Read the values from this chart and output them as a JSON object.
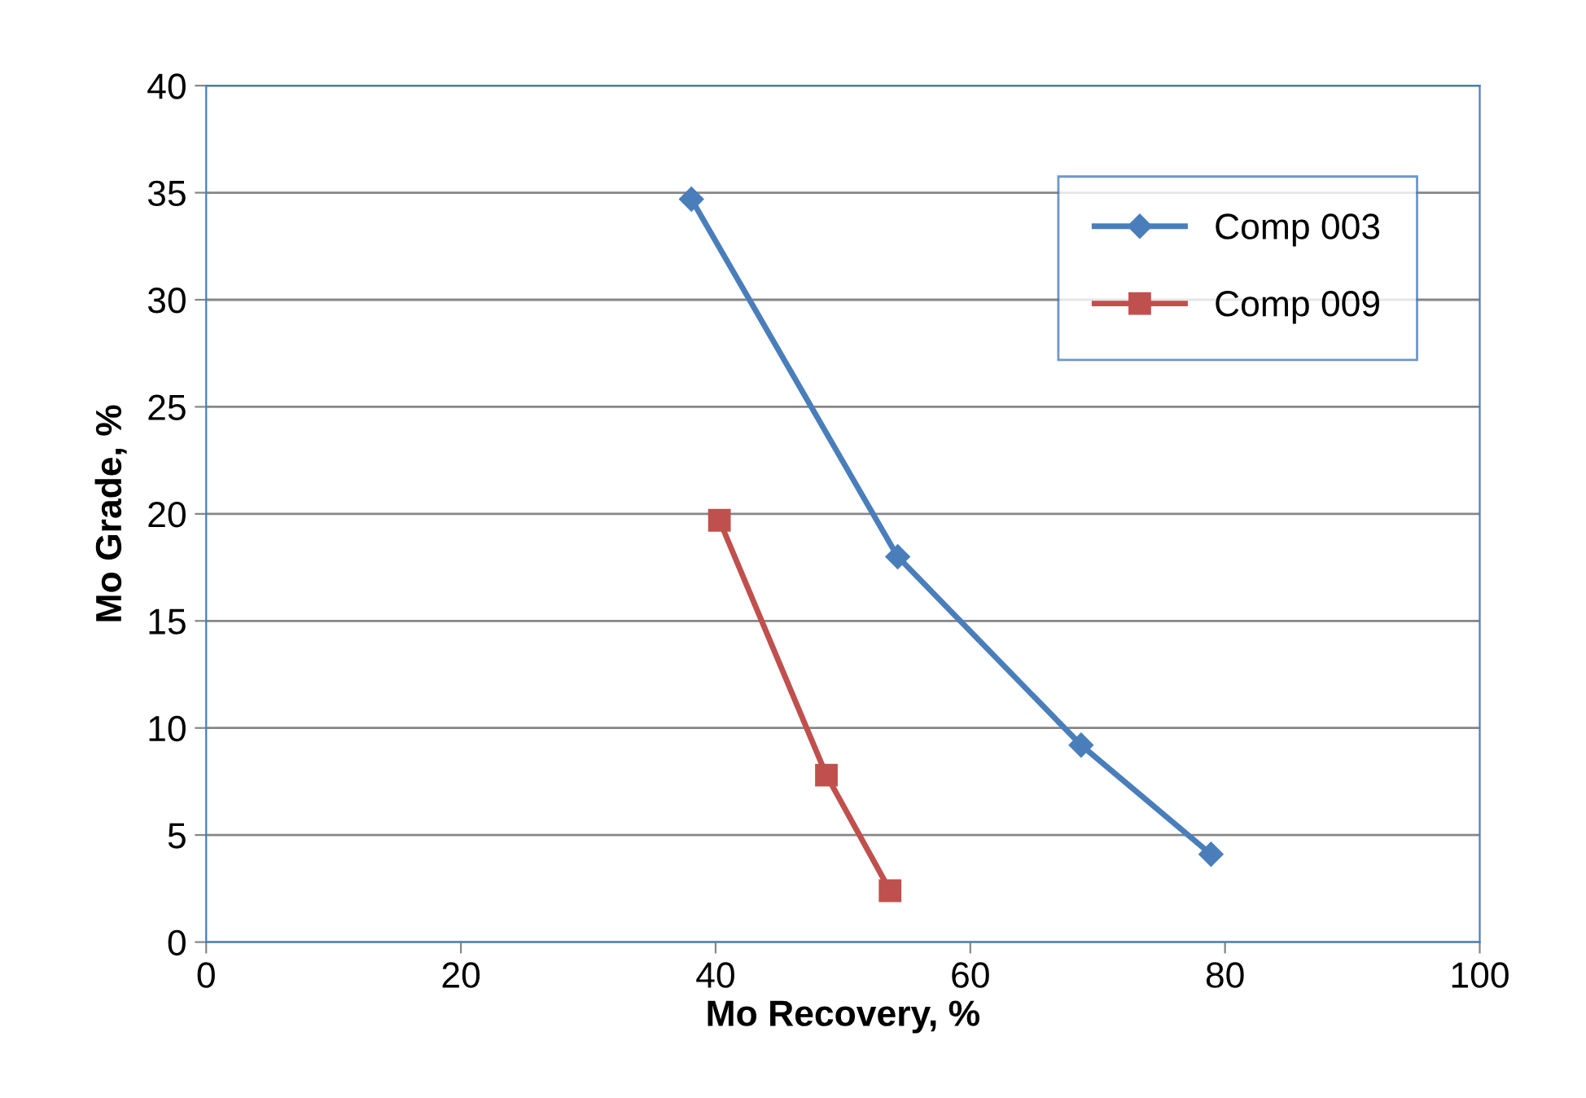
{
  "chart_data": {
    "type": "line",
    "xlabel": "Mo Recovery, %",
    "ylabel": "Mo Grade, %",
    "xlim": [
      0,
      100
    ],
    "xticks": [
      0,
      20,
      40,
      60,
      80,
      100
    ],
    "ylim": [
      0,
      40
    ],
    "yticks": [
      0,
      5,
      10,
      15,
      20,
      25,
      30,
      35,
      40
    ],
    "grid": "y",
    "legend": "top right",
    "line_style": "solid",
    "series": [
      {
        "name": "Comp 003",
        "color": "#4a7ebb",
        "marker": "diamond",
        "x": [
          38.1,
          54.3,
          68.7,
          78.9
        ],
        "values": [
          34.7,
          18.0,
          9.2,
          4.1
        ]
      },
      {
        "name": "Comp 009",
        "color": "#c0504d",
        "marker": "square",
        "x": [
          40.3,
          48.7,
          53.7
        ],
        "values": [
          19.7,
          7.8,
          2.4
        ]
      }
    ]
  }
}
